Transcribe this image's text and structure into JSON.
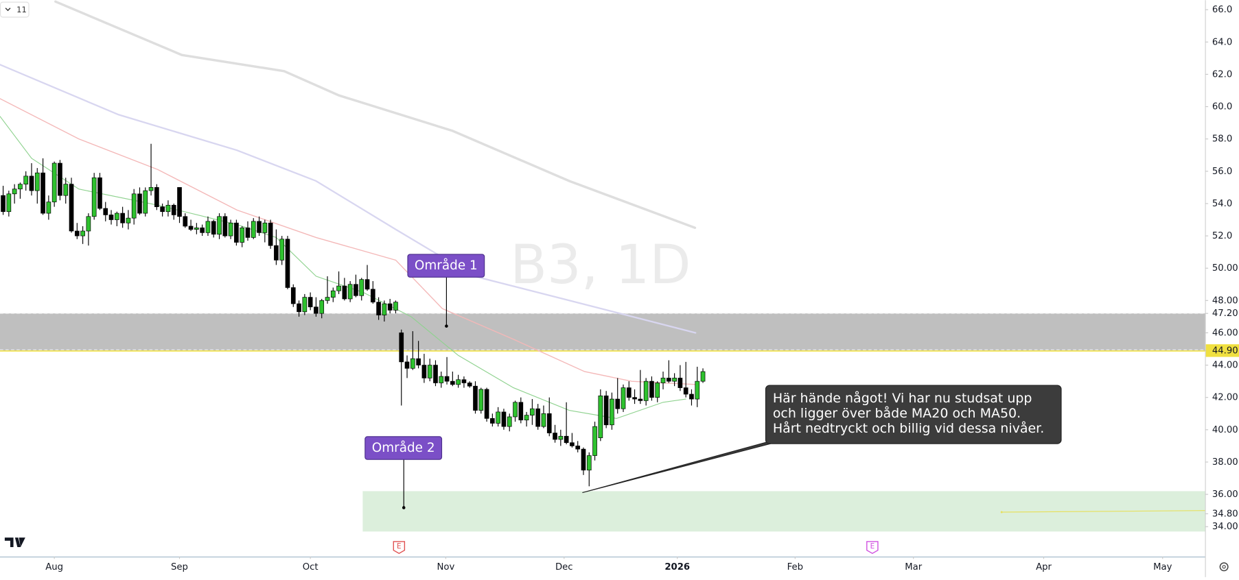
{
  "chart_data": {
    "type": "candlestick",
    "watermark": "B3, 1D",
    "interval_button": "11",
    "up_color": "#2ec22e",
    "down_color": "#000000",
    "xlim": [
      -0.55,
      211.25
    ],
    "xticks": [
      {
        "value": 9,
        "label": "Aug"
      },
      {
        "value": 31,
        "label": "Sep"
      },
      {
        "value": 54,
        "label": "Oct"
      },
      {
        "value": 77.8,
        "label": "Nov"
      },
      {
        "value": 98.6,
        "label": "Dec"
      },
      {
        "value": 118.5,
        "label": "2026"
      },
      {
        "value": 139.2,
        "label": "Feb"
      },
      {
        "value": 160,
        "label": "Mar"
      },
      {
        "value": 182.9,
        "label": "Apr"
      },
      {
        "value": 203.8,
        "label": "May"
      }
    ],
    "ylim": [
      32.15,
      66.59
    ],
    "yticks": [
      {
        "value": 66,
        "label": "66.0"
      },
      {
        "value": 64,
        "label": "64.0"
      },
      {
        "value": 62,
        "label": "62.0"
      },
      {
        "value": 60,
        "label": "60.0"
      },
      {
        "value": 58,
        "label": "58.0"
      },
      {
        "value": 56,
        "label": "56.0"
      },
      {
        "value": 54,
        "label": "54.0"
      },
      {
        "value": 52,
        "label": "52.0"
      },
      {
        "value": 50,
        "label": "50.00"
      },
      {
        "value": 48,
        "label": "48.00"
      },
      {
        "value": 47.2,
        "label": "47.20"
      },
      {
        "value": 46,
        "label": "46.00"
      },
      {
        "value": 44.9,
        "label": "44.90"
      },
      {
        "value": 44,
        "label": "44.00"
      },
      {
        "value": 42,
        "label": "42.00"
      },
      {
        "value": 40,
        "label": "40.00"
      },
      {
        "value": 38,
        "label": "38.00"
      },
      {
        "value": 36,
        "label": "36.00"
      },
      {
        "value": 34.8,
        "label": "34.80"
      },
      {
        "value": 34,
        "label": "34.00"
      }
    ],
    "price_line": {
      "value": 44.9,
      "color": "#f0e040"
    },
    "zones": [
      {
        "from": 44.9,
        "to": 47.2,
        "start": -0.55,
        "color": "#bfbfbf"
      },
      {
        "from": 33.7,
        "to": 36.2,
        "start": 63.2,
        "color": "#dcefdc"
      }
    ],
    "level_line": {
      "value": 34.9,
      "start": 175.5,
      "color": "#e6e060"
    },
    "candles": [
      [
        54.5,
        55.1,
        53.3,
        53.5
      ],
      [
        53.5,
        54.8,
        53.2,
        54.6
      ],
      [
        54.6,
        55.2,
        54.0,
        54.9
      ],
      [
        54.9,
        55.3,
        54.3,
        55.2
      ],
      [
        55.2,
        56.0,
        54.8,
        55.7
      ],
      [
        55.7,
        56.5,
        54.5,
        54.8
      ],
      [
        54.8,
        56.2,
        54.0,
        55.9
      ],
      [
        55.9,
        56.8,
        53.3,
        53.4
      ],
      [
        53.4,
        54.5,
        53.0,
        54.1
      ],
      [
        54.1,
        56.6,
        53.8,
        56.5
      ],
      [
        56.5,
        56.7,
        54.2,
        54.5
      ],
      [
        54.5,
        55.6,
        54.0,
        55.2
      ],
      [
        55.2,
        55.6,
        52.2,
        52.3
      ],
      [
        52.3,
        52.8,
        51.8,
        52.0
      ],
      [
        52.0,
        52.6,
        51.5,
        52.3
      ],
      [
        52.3,
        53.4,
        51.4,
        53.2
      ],
      [
        53.2,
        55.9,
        53.0,
        55.6
      ],
      [
        55.6,
        55.9,
        53.6,
        53.7
      ],
      [
        53.7,
        54.1,
        52.9,
        53.3
      ],
      [
        53.3,
        53.6,
        52.7,
        53.0
      ],
      [
        53.0,
        53.5,
        52.6,
        53.4
      ],
      [
        53.4,
        53.8,
        52.5,
        52.8
      ],
      [
        52.8,
        53.6,
        52.4,
        53.1
      ],
      [
        53.1,
        54.9,
        52.7,
        54.6
      ],
      [
        54.6,
        55.0,
        53.3,
        53.4
      ],
      [
        53.4,
        55.0,
        53.2,
        54.8
      ],
      [
        54.8,
        57.7,
        54.5,
        55.0
      ],
      [
        55.0,
        55.2,
        53.6,
        53.8
      ],
      [
        53.8,
        54.0,
        53.2,
        53.5
      ],
      [
        53.5,
        54.2,
        53.2,
        53.9
      ],
      [
        53.9,
        54.0,
        53.0,
        53.3
      ],
      [
        55.0,
        55.0,
        52.8,
        53.2
      ],
      [
        53.2,
        53.4,
        52.5,
        52.6
      ],
      [
        52.6,
        53.0,
        52.3,
        52.4
      ],
      [
        52.4,
        52.8,
        52.1,
        52.5
      ],
      [
        52.5,
        52.7,
        52.0,
        52.2
      ],
      [
        52.2,
        53.2,
        52.0,
        52.9
      ],
      [
        52.9,
        53.0,
        51.9,
        52.1
      ],
      [
        52.1,
        53.4,
        51.8,
        53.2
      ],
      [
        53.2,
        53.4,
        51.9,
        52.0
      ],
      [
        52.0,
        53.0,
        51.8,
        52.8
      ],
      [
        52.8,
        53.0,
        51.4,
        51.6
      ],
      [
        51.6,
        52.6,
        51.3,
        52.5
      ],
      [
        52.5,
        52.9,
        51.7,
        51.9
      ],
      [
        51.9,
        53.1,
        51.8,
        52.9
      ],
      [
        52.9,
        53.2,
        52.0,
        52.2
      ],
      [
        52.2,
        53.0,
        51.6,
        52.8
      ],
      [
        52.8,
        53.0,
        51.2,
        51.4
      ],
      [
        51.4,
        52.4,
        50.2,
        50.5
      ],
      [
        50.5,
        52.0,
        50.2,
        51.8
      ],
      [
        51.8,
        52.0,
        48.7,
        48.8
      ],
      [
        48.8,
        49.0,
        47.6,
        47.8
      ],
      [
        47.8,
        48.0,
        47.0,
        47.3
      ],
      [
        47.3,
        48.4,
        47.1,
        48.2
      ],
      [
        48.2,
        48.5,
        47.4,
        47.6
      ],
      [
        47.6,
        48.2,
        47.0,
        47.2
      ],
      [
        47.2,
        48.1,
        46.9,
        48.0
      ],
      [
        48.0,
        49.5,
        47.8,
        48.2
      ],
      [
        48.2,
        48.8,
        47.9,
        48.6
      ],
      [
        48.6,
        49.8,
        48.4,
        48.9
      ],
      [
        48.9,
        49.4,
        48.0,
        48.1
      ],
      [
        48.1,
        49.2,
        47.9,
        49.0
      ],
      [
        49.0,
        49.6,
        48.2,
        48.3
      ],
      [
        48.3,
        49.4,
        48.0,
        49.3
      ],
      [
        49.3,
        50.2,
        48.6,
        48.7
      ],
      [
        48.7,
        49.2,
        47.8,
        47.9
      ],
      [
        47.9,
        48.2,
        46.8,
        47.1
      ],
      [
        47.1,
        48.0,
        46.7,
        47.8
      ],
      [
        47.8,
        48.1,
        47.2,
        47.4
      ],
      [
        47.4,
        48.0,
        47.2,
        47.9
      ],
      [
        46.0,
        46.2,
        41.5,
        44.2
      ],
      [
        44.2,
        44.6,
        43.2,
        43.8
      ],
      [
        43.8,
        46.1,
        43.7,
        44.4
      ],
      [
        44.4,
        45.5,
        43.8,
        44.0
      ],
      [
        44.0,
        44.7,
        42.9,
        43.2
      ],
      [
        43.2,
        44.4,
        43.0,
        44.0
      ],
      [
        44.0,
        44.3,
        42.7,
        42.9
      ],
      [
        42.9,
        43.6,
        42.6,
        43.3
      ],
      [
        43.3,
        44.5,
        42.8,
        43.0
      ],
      [
        43.0,
        43.6,
        42.7,
        42.8
      ],
      [
        42.8,
        43.4,
        42.6,
        43.1
      ],
      [
        43.1,
        43.3,
        42.6,
        42.9
      ],
      [
        42.9,
        43.0,
        42.6,
        42.7
      ],
      [
        42.7,
        43.0,
        41.0,
        41.2
      ],
      [
        41.2,
        42.6,
        41.0,
        42.5
      ],
      [
        42.5,
        42.6,
        40.5,
        40.7
      ],
      [
        40.7,
        41.0,
        40.2,
        40.4
      ],
      [
        40.4,
        41.4,
        40.2,
        41.1
      ],
      [
        41.1,
        41.3,
        40.0,
        40.2
      ],
      [
        40.2,
        41.0,
        39.9,
        40.8
      ],
      [
        40.8,
        41.8,
        40.5,
        41.7
      ],
      [
        41.7,
        42.0,
        40.4,
        40.6
      ],
      [
        40.6,
        41.1,
        40.2,
        40.9
      ],
      [
        40.9,
        41.9,
        40.3,
        41.3
      ],
      [
        41.3,
        41.6,
        40.0,
        40.2
      ],
      [
        40.2,
        41.5,
        40.1,
        41.0
      ],
      [
        41.0,
        42.0,
        39.6,
        39.8
      ],
      [
        39.8,
        40.3,
        39.2,
        39.4
      ],
      [
        39.4,
        40.0,
        39.0,
        39.6
      ],
      [
        39.6,
        41.7,
        39.1,
        39.2
      ],
      [
        39.2,
        39.8,
        38.9,
        39.0
      ],
      [
        39.0,
        39.3,
        38.6,
        38.8
      ],
      [
        38.8,
        38.9,
        37.2,
        37.5
      ],
      [
        37.5,
        38.6,
        36.5,
        38.4
      ],
      [
        38.4,
        40.5,
        38.1,
        40.2
      ],
      [
        39.5,
        42.5,
        39.3,
        42.1
      ],
      [
        42.1,
        42.4,
        40.1,
        40.3
      ],
      [
        40.3,
        42.3,
        40.0,
        41.9
      ],
      [
        41.9,
        43.2,
        41.0,
        41.3
      ],
      [
        41.3,
        42.8,
        41.1,
        42.6
      ],
      [
        42.6,
        43.0,
        41.8,
        42.0
      ],
      [
        42.0,
        42.5,
        41.6,
        41.9
      ],
      [
        41.9,
        43.7,
        41.6,
        41.8
      ],
      [
        41.8,
        43.2,
        41.5,
        43.0
      ],
      [
        43.0,
        43.3,
        41.8,
        42.0
      ],
      [
        42.0,
        43.0,
        41.7,
        42.9
      ],
      [
        42.9,
        43.6,
        42.5,
        43.2
      ],
      [
        43.2,
        44.3,
        42.9,
        43.0
      ],
      [
        43.0,
        43.5,
        42.7,
        43.2
      ],
      [
        43.2,
        44.0,
        42.4,
        42.6
      ],
      [
        42.6,
        44.2,
        42.0,
        42.2
      ],
      [
        42.2,
        42.5,
        41.5,
        41.9
      ],
      [
        41.9,
        43.9,
        41.4,
        43.0
      ],
      [
        43.0,
        43.8,
        42.9,
        43.6
      ]
    ],
    "moving_averages": [
      {
        "color": "#dedede",
        "width": 3,
        "x": [
          9.2,
          31.4,
          49.4,
          59,
          79,
          99.5,
          121.6
        ],
        "values": [
          66.5,
          63.2,
          62.2,
          60.7,
          58.5,
          55.4,
          52.5
        ]
      },
      {
        "color": "#d8d6f0",
        "width": 2,
        "x": [
          -0.55,
          20.3,
          41.1,
          55,
          69,
          82.8,
          99.5,
          121.7
        ],
        "values": [
          62.6,
          59.5,
          57.3,
          55.4,
          52.4,
          49.5,
          48.0,
          46.0
        ]
      },
      {
        "color": "#f4b8b8",
        "width": 1.2,
        "x": [
          -0.55,
          13.3,
          27.2,
          41.1,
          55,
          69,
          77.2,
          89.7,
          102.2,
          110.5,
          121.7
        ],
        "values": [
          60.5,
          58.0,
          56.1,
          53.6,
          51.9,
          50.5,
          47.5,
          45.6,
          43.6,
          43.0,
          42.8
        ]
      },
      {
        "color": "#8fd28f",
        "width": 1,
        "x": [
          -0.55,
          5,
          13.3,
          27.2,
          41.1,
          48,
          55,
          63.3,
          71.7,
          80,
          89.7,
          99.5,
          107.8,
          116,
          120
        ],
        "values": [
          59.4,
          56.8,
          54.9,
          53.9,
          52.7,
          51.9,
          49.5,
          48.5,
          47.0,
          44.6,
          42.6,
          41.2,
          40.7,
          41.7,
          41.9
        ]
      }
    ],
    "annotations": [
      {
        "text": "Område 1"
      },
      {
        "text": "Område 2"
      }
    ],
    "callout": {
      "lines": [
        "Här hände något! Vi har nu studsat upp",
        "och ligger över både MA20 och MA50.",
        "Hårt nedtryckt och billig vid dessa nivåer."
      ]
    },
    "event_markers": [
      {
        "label": "E",
        "color": "#e05050"
      },
      {
        "label": "E",
        "color": "#d050e0"
      }
    ]
  }
}
